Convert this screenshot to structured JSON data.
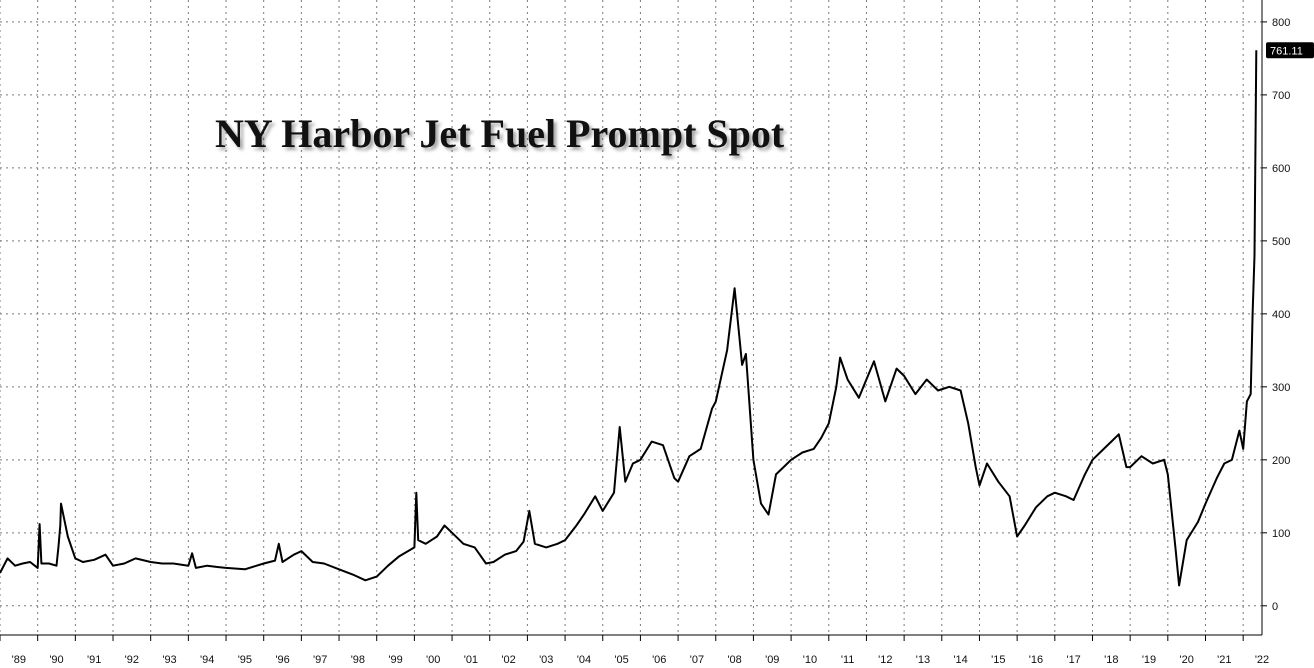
{
  "chart_data": {
    "type": "line",
    "title": "NY Harbor Jet Fuel Prompt Spot",
    "x_tick_labels": [
      "'89",
      "'90",
      "'91",
      "'92",
      "'93",
      "'94",
      "'95",
      "'96",
      "'97",
      "'98",
      "'99",
      "'00",
      "'01",
      "'02",
      "'03",
      "'04",
      "'05",
      "'06",
      "'07",
      "'08",
      "'09",
      "'10",
      "'11",
      "'12",
      "'13",
      "'14",
      "'15",
      "'16",
      "'17",
      "'18",
      "'19",
      "'20",
      "'21",
      "'22"
    ],
    "x_range": [
      1989.0,
      2022.5
    ],
    "ylim": [
      -40,
      830
    ],
    "y_ticks": [
      0,
      100,
      200,
      300,
      400,
      500,
      600,
      700,
      800
    ],
    "grid": true,
    "last_value_label": "761.11",
    "series": [
      {
        "points": [
          [
            1989.0,
            45
          ],
          [
            1989.2,
            65
          ],
          [
            1989.4,
            55
          ],
          [
            1989.6,
            58
          ],
          [
            1989.8,
            60
          ],
          [
            1990.0,
            52
          ],
          [
            1990.05,
            112
          ],
          [
            1990.1,
            58
          ],
          [
            1990.3,
            58
          ],
          [
            1990.5,
            55
          ],
          [
            1990.55,
            80
          ],
          [
            1990.6,
            110
          ],
          [
            1990.62,
            140
          ],
          [
            1990.7,
            120
          ],
          [
            1990.8,
            95
          ],
          [
            1991.0,
            65
          ],
          [
            1991.2,
            60
          ],
          [
            1991.5,
            63
          ],
          [
            1991.8,
            70
          ],
          [
            1992.0,
            55
          ],
          [
            1992.3,
            58
          ],
          [
            1992.6,
            65
          ],
          [
            1993.0,
            60
          ],
          [
            1993.3,
            58
          ],
          [
            1993.6,
            58
          ],
          [
            1994.0,
            55
          ],
          [
            1994.1,
            72
          ],
          [
            1994.2,
            52
          ],
          [
            1994.5,
            55
          ],
          [
            1994.8,
            53
          ],
          [
            1995.0,
            52
          ],
          [
            1995.5,
            50
          ],
          [
            1996.0,
            58
          ],
          [
            1996.3,
            62
          ],
          [
            1996.4,
            85
          ],
          [
            1996.5,
            60
          ],
          [
            1996.8,
            70
          ],
          [
            1997.0,
            75
          ],
          [
            1997.3,
            60
          ],
          [
            1997.6,
            58
          ],
          [
            1998.0,
            50
          ],
          [
            1998.4,
            42
          ],
          [
            1998.7,
            35
          ],
          [
            1999.0,
            40
          ],
          [
            1999.3,
            55
          ],
          [
            1999.6,
            68
          ],
          [
            2000.0,
            80
          ],
          [
            2000.05,
            155
          ],
          [
            2000.1,
            90
          ],
          [
            2000.3,
            85
          ],
          [
            2000.6,
            95
          ],
          [
            2000.8,
            110
          ],
          [
            2001.0,
            100
          ],
          [
            2001.3,
            85
          ],
          [
            2001.6,
            80
          ],
          [
            2001.9,
            58
          ],
          [
            2002.1,
            60
          ],
          [
            2002.4,
            70
          ],
          [
            2002.7,
            75
          ],
          [
            2002.9,
            88
          ],
          [
            2003.05,
            130
          ],
          [
            2003.2,
            85
          ],
          [
            2003.5,
            80
          ],
          [
            2003.8,
            85
          ],
          [
            2004.0,
            90
          ],
          [
            2004.3,
            110
          ],
          [
            2004.5,
            125
          ],
          [
            2004.8,
            150
          ],
          [
            2005.0,
            130
          ],
          [
            2005.3,
            155
          ],
          [
            2005.45,
            245
          ],
          [
            2005.6,
            170
          ],
          [
            2005.8,
            195
          ],
          [
            2006.0,
            200
          ],
          [
            2006.3,
            225
          ],
          [
            2006.6,
            220
          ],
          [
            2006.9,
            175
          ],
          [
            2007.0,
            170
          ],
          [
            2007.3,
            205
          ],
          [
            2007.6,
            215
          ],
          [
            2007.9,
            270
          ],
          [
            2008.0,
            280
          ],
          [
            2008.3,
            350
          ],
          [
            2008.5,
            435
          ],
          [
            2008.7,
            330
          ],
          [
            2008.8,
            345
          ],
          [
            2009.0,
            200
          ],
          [
            2009.2,
            140
          ],
          [
            2009.4,
            125
          ],
          [
            2009.6,
            180
          ],
          [
            2009.8,
            190
          ],
          [
            2010.0,
            200
          ],
          [
            2010.3,
            210
          ],
          [
            2010.6,
            215
          ],
          [
            2010.8,
            230
          ],
          [
            2011.0,
            250
          ],
          [
            2011.2,
            300
          ],
          [
            2011.3,
            340
          ],
          [
            2011.5,
            310
          ],
          [
            2011.8,
            285
          ],
          [
            2012.0,
            310
          ],
          [
            2012.2,
            335
          ],
          [
            2012.5,
            280
          ],
          [
            2012.8,
            325
          ],
          [
            2013.0,
            315
          ],
          [
            2013.3,
            290
          ],
          [
            2013.6,
            310
          ],
          [
            2013.9,
            295
          ],
          [
            2014.2,
            300
          ],
          [
            2014.5,
            295
          ],
          [
            2014.7,
            250
          ],
          [
            2014.9,
            190
          ],
          [
            2015.0,
            165
          ],
          [
            2015.2,
            195
          ],
          [
            2015.5,
            170
          ],
          [
            2015.8,
            150
          ],
          [
            2016.0,
            95
          ],
          [
            2016.2,
            110
          ],
          [
            2016.5,
            135
          ],
          [
            2016.8,
            150
          ],
          [
            2017.0,
            155
          ],
          [
            2017.3,
            150
          ],
          [
            2017.5,
            145
          ],
          [
            2017.8,
            180
          ],
          [
            2018.0,
            200
          ],
          [
            2018.3,
            215
          ],
          [
            2018.5,
            225
          ],
          [
            2018.7,
            235
          ],
          [
            2018.9,
            190
          ],
          [
            2019.0,
            190
          ],
          [
            2019.3,
            205
          ],
          [
            2019.6,
            195
          ],
          [
            2019.9,
            200
          ],
          [
            2020.0,
            180
          ],
          [
            2020.2,
            80
          ],
          [
            2020.3,
            28
          ],
          [
            2020.5,
            90
          ],
          [
            2020.8,
            115
          ],
          [
            2021.0,
            140
          ],
          [
            2021.3,
            175
          ],
          [
            2021.5,
            195
          ],
          [
            2021.7,
            200
          ],
          [
            2021.9,
            240
          ],
          [
            2022.0,
            215
          ],
          [
            2022.1,
            280
          ],
          [
            2022.2,
            290
          ],
          [
            2022.25,
            400
          ],
          [
            2022.3,
            480
          ],
          [
            2022.35,
            761.11
          ]
        ]
      }
    ]
  }
}
